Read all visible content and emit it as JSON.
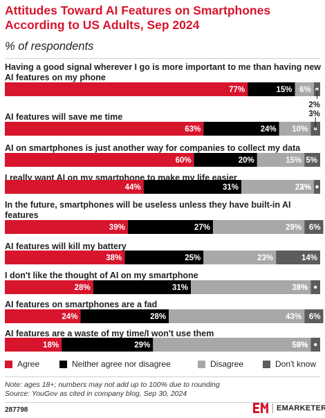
{
  "header": {
    "title": "Attitudes Toward AI Features on Smartphones According to US Adults, Sep 2024",
    "subtitle": "% of respondents"
  },
  "colors": {
    "agree": "#d7152d",
    "neither": "#000000",
    "disagree": "#a8a8a8",
    "dont_know": "#5c5c5c",
    "title": "#d7152d"
  },
  "chart_data": {
    "type": "bar",
    "orientation": "horizontal",
    "stacked": true,
    "unit": "%",
    "categories": [
      "Having a good signal wherever I go is more important to me than having new AI features on my phone",
      "AI features will save me time",
      "AI on smartphones is just another way for companies to collect my data",
      "I really want AI on my smartphone to make my life easier",
      "In the future, smartphones will be useless unless they have built-in AI features",
      "AI features will kill my battery",
      "I don't like the thought of AI on my smartphone",
      "AI features on smartphones are a fad",
      "AI features are a waste of my time/I won't use them"
    ],
    "series": [
      {
        "name": "Agree",
        "values": [
          77,
          63,
          60,
          44,
          39,
          38,
          28,
          24,
          18
        ]
      },
      {
        "name": "Neither agree nor disagree",
        "values": [
          15,
          24,
          20,
          31,
          27,
          25,
          31,
          28,
          29
        ]
      },
      {
        "name": "Disagree",
        "values": [
          6,
          10,
          15,
          23,
          29,
          23,
          38,
          43,
          50
        ]
      },
      {
        "name": "Don't know",
        "values": [
          2,
          3,
          5,
          2,
          6,
          14,
          3,
          6,
          3
        ]
      }
    ],
    "legend": "bottom"
  },
  "legend": {
    "agree": "Agree",
    "neither": "Neither agree nor disagree",
    "disagree": "Disagree",
    "dont_know": "Don't know"
  },
  "footer": {
    "note": "Note: ages 18+; numbers may not add up to 100% due to rounding",
    "source": "Source: YouGov as cited in company blog, Sep 30, 2024",
    "chart_id": "287798",
    "brand": "EMARKETER"
  }
}
